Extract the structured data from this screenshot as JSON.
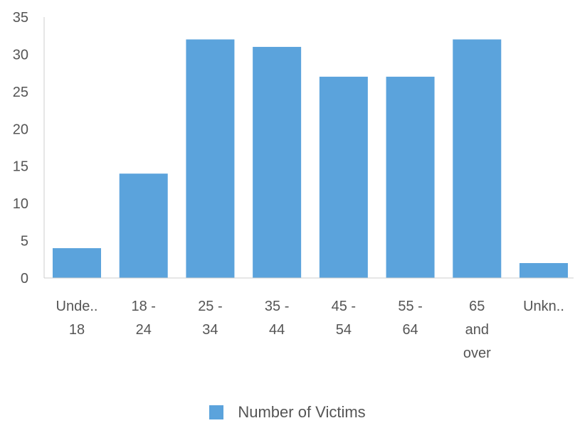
{
  "chart_data": {
    "type": "bar",
    "title": "",
    "xlabel": "",
    "ylabel": "",
    "categories": [
      [
        "Unde..",
        "18"
      ],
      [
        "18 -",
        "24"
      ],
      [
        "25 -",
        "34"
      ],
      [
        "35 -",
        "44"
      ],
      [
        "45 -",
        "54"
      ],
      [
        "55 -",
        "64"
      ],
      [
        "65",
        "and",
        "over"
      ],
      [
        "Unkn.."
      ]
    ],
    "series": [
      {
        "name": "Number of Victims",
        "values": [
          4,
          14,
          32,
          31,
          27,
          27,
          32,
          2
        ]
      }
    ],
    "ylim": [
      0,
      35
    ],
    "yticks": [
      0,
      5,
      10,
      15,
      20,
      25,
      30,
      35
    ],
    "grid": false,
    "legend_position": "bottom",
    "colors": {
      "bar": "#5ba3dc",
      "axis": "#cccccc",
      "text": "#555555"
    }
  },
  "legend": {
    "label": "Number of Victims"
  }
}
